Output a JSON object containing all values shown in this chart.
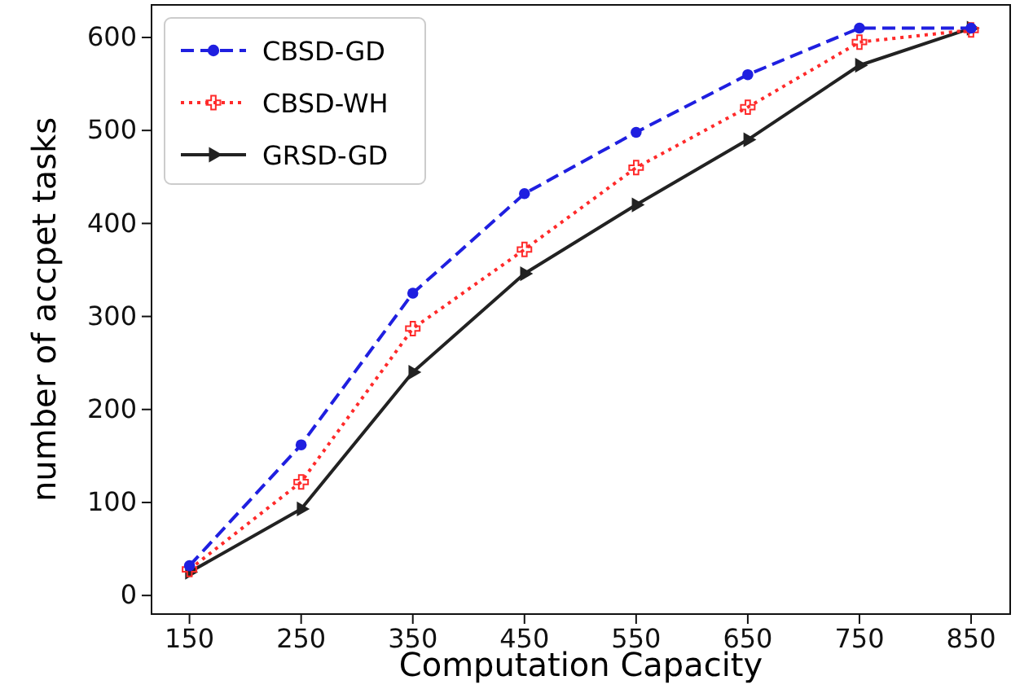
{
  "chart_data": {
    "type": "line",
    "xlabel": "Computation Capacity",
    "ylabel": "number of accpet tasks",
    "x": [
      150,
      250,
      350,
      450,
      550,
      650,
      750,
      850
    ],
    "xlim": [
      116,
      885
    ],
    "xticks": [
      150,
      250,
      350,
      450,
      550,
      650,
      750,
      850
    ],
    "ylim": [
      -20,
      635
    ],
    "yticks": [
      0,
      100,
      200,
      300,
      400,
      500,
      600
    ],
    "legend": "top left",
    "grid": false,
    "series": [
      {
        "name": "CBSD-GD",
        "color": "#1f1fe0",
        "marker": "circle",
        "line_style": "dashed",
        "values": [
          32,
          162,
          325,
          432,
          498,
          560,
          610,
          610
        ]
      },
      {
        "name": "CBSD-WH",
        "color": "#ff2a2a",
        "marker": "cross",
        "line_style": "dotted",
        "values": [
          28,
          122,
          287,
          372,
          460,
          525,
          595,
          608
        ]
      },
      {
        "name": "GRSD-GD",
        "color": "#222222",
        "marker": "triangle",
        "line_style": "solid",
        "values": [
          25,
          93,
          240,
          346,
          420,
          490,
          570,
          610
        ]
      }
    ]
  }
}
